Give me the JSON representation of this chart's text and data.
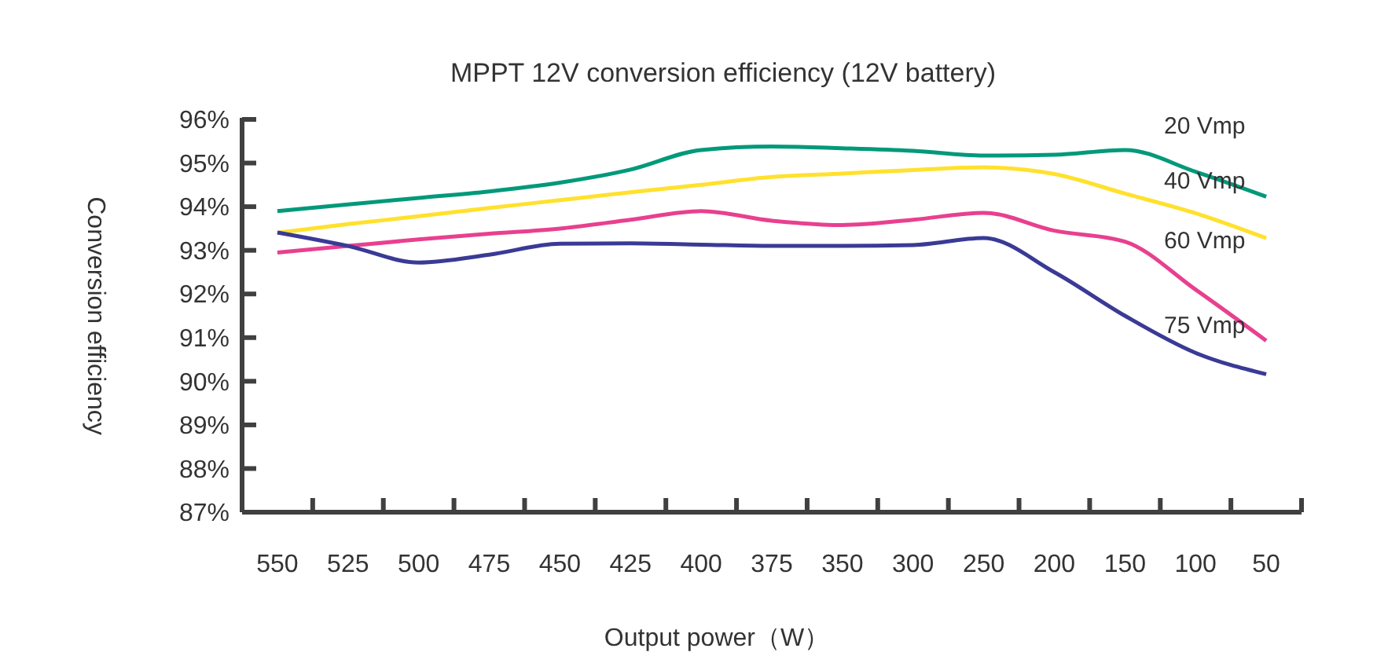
{
  "chart_data": {
    "type": "line",
    "title": "MPPT 12V conversion efficiency (12V battery)",
    "xlabel": "Output power（W）",
    "ylabel": "Conversion efficiency",
    "categories": [
      "550",
      "525",
      "500",
      "475",
      "450",
      "425",
      "400",
      "375",
      "350",
      "300",
      "250",
      "200",
      "150",
      "100",
      "50"
    ],
    "ylim": [
      87,
      96
    ],
    "yticks": [
      {
        "value": 87,
        "label": "87%"
      },
      {
        "value": 88,
        "label": "88%"
      },
      {
        "value": 89,
        "label": "89%"
      },
      {
        "value": 90,
        "label": "90%"
      },
      {
        "value": 91,
        "label": "91%"
      },
      {
        "value": 92,
        "label": "92%"
      },
      {
        "value": 93,
        "label": "93%"
      },
      {
        "value": 94,
        "label": "94%"
      },
      {
        "value": 95,
        "label": "95%"
      },
      {
        "value": 96,
        "label": "96%"
      }
    ],
    "grid": false,
    "legend": false,
    "marker": "none",
    "line_style": "solid",
    "series": [
      {
        "name": "20 Vmp",
        "color": "#00997a",
        "values": [
          93.9,
          94.05,
          94.2,
          94.35,
          94.55,
          94.85,
          95.3,
          95.38,
          95.34,
          95.28,
          95.17,
          95.19,
          95.3,
          94.8,
          94.23
        ]
      },
      {
        "name": "40 Vmp",
        "color": "#ffe12e",
        "values": [
          93.4,
          93.6,
          93.78,
          93.97,
          94.15,
          94.33,
          94.5,
          94.68,
          94.76,
          94.84,
          94.9,
          94.75,
          94.3,
          93.85,
          93.28
        ]
      },
      {
        "name": "60 Vmp",
        "color": "#e8408f",
        "values": [
          92.95,
          93.1,
          93.25,
          93.38,
          93.5,
          93.7,
          93.9,
          93.68,
          93.58,
          93.7,
          93.86,
          93.45,
          93.2,
          92.1,
          90.93
        ]
      },
      {
        "name": "75 Vmp",
        "color": "#3a3a96",
        "values": [
          93.41,
          93.1,
          92.72,
          92.9,
          93.15,
          93.16,
          93.13,
          93.1,
          93.1,
          93.12,
          93.28,
          92.5,
          91.5,
          90.65,
          90.16
        ]
      }
    ]
  }
}
